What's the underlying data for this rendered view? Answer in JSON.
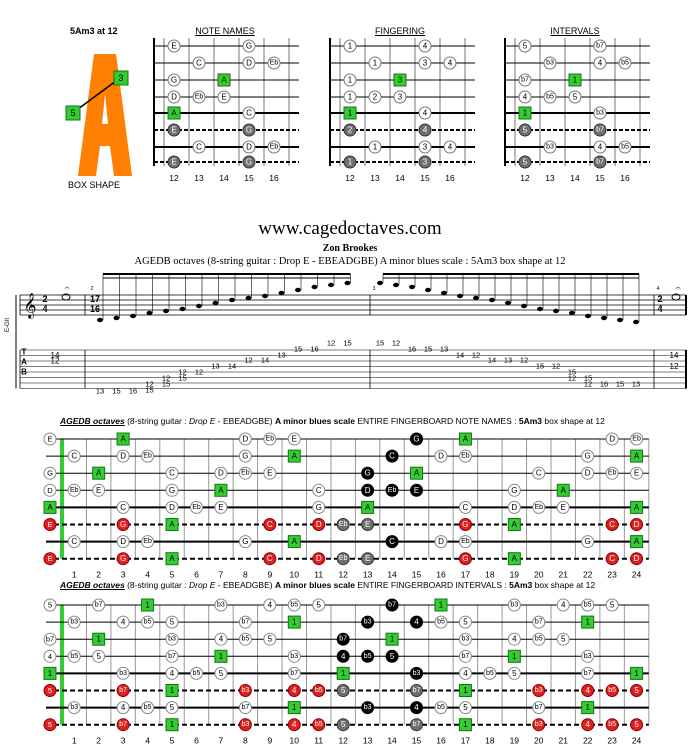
{
  "header": {
    "shape_title": "5Am3 at 12",
    "box_shape_label": "BOX SHAPE",
    "letter": "A",
    "letter_markers": [
      "3",
      "5"
    ],
    "panels": [
      {
        "title": "NOTE NAMES",
        "frets": [
          "12",
          "13",
          "14",
          "15",
          "16"
        ],
        "cells": [
          [
            "E",
            "",
            "",
            "G",
            ""
          ],
          [
            "",
            "C",
            "",
            "D",
            "Eb"
          ],
          [
            "G",
            "",
            "A",
            "",
            ""
          ],
          [
            "D",
            "Eb",
            "E",
            "",
            ""
          ],
          [
            "A",
            "",
            "",
            "C",
            ""
          ],
          [
            "E",
            "",
            "",
            "G",
            ""
          ],
          [
            "",
            "C",
            "",
            "D",
            "Eb"
          ],
          [
            "E",
            "",
            "",
            "G",
            ""
          ]
        ]
      },
      {
        "title": "FINGERING",
        "frets": [
          "12",
          "13",
          "14",
          "15",
          "16"
        ],
        "cells": [
          [
            "1",
            "",
            "",
            "4",
            ""
          ],
          [
            "",
            "1",
            "",
            "3",
            "4"
          ],
          [
            "1",
            "",
            "3",
            "",
            ""
          ],
          [
            "1",
            "2",
            "3",
            "",
            ""
          ],
          [
            "1",
            "",
            "",
            "4",
            ""
          ],
          [
            "2",
            "",
            "",
            "4",
            ""
          ],
          [
            "",
            "1",
            "",
            "3",
            "4"
          ],
          [
            "1",
            "",
            "",
            "3",
            ""
          ]
        ]
      },
      {
        "title": "INTERVALS",
        "frets": [
          "12",
          "13",
          "14",
          "15",
          "16"
        ],
        "cells": [
          [
            "5",
            "",
            "",
            "b7",
            ""
          ],
          [
            "",
            "b3",
            "",
            "4",
            "b5"
          ],
          [
            "b7",
            "",
            "1",
            "",
            ""
          ],
          [
            "4",
            "b5",
            "5",
            "",
            ""
          ],
          [
            "1",
            "",
            "",
            "b3",
            ""
          ],
          [
            "5",
            "",
            "",
            "b7",
            ""
          ],
          [
            "",
            "b3",
            "",
            "4",
            "b5"
          ],
          [
            "5",
            "",
            "",
            "b7",
            ""
          ]
        ]
      }
    ]
  },
  "site": "www.cagedoctaves.com",
  "author": "Zon Brookes",
  "subtitle": "AGEDB octaves (8-string guitar : Drop E - EBEADGBE) A minor blues scale : 5Am3 box shape at 12",
  "notation": {
    "time_sig": [
      "2",
      "4"
    ],
    "tuplet": "17",
    "tuplet_den": "16",
    "measure_numbers": [
      "1",
      "2",
      "3",
      "4"
    ],
    "clef_label": "E-GIt",
    "tab_letters": [
      "T",
      "A",
      "B"
    ],
    "fermata": "𝄐",
    "measure1_tab": [
      [
        "14",
        "12"
      ]
    ],
    "run_up": [
      [
        "13"
      ],
      [
        "15"
      ],
      [
        "16"
      ],
      [
        "12",
        "15"
      ],
      [
        "12",
        "15"
      ],
      [
        "12",
        "15"
      ],
      [
        "12"
      ],
      [
        "13"
      ],
      [
        "14"
      ],
      [
        "12"
      ],
      [
        "14"
      ],
      [
        "13"
      ],
      [
        "15"
      ],
      [
        "16"
      ],
      [
        "12"
      ],
      [
        "15"
      ]
    ],
    "run_down": [
      [
        "15"
      ],
      [
        "12"
      ],
      [
        "16"
      ],
      [
        "15"
      ],
      [
        "13"
      ],
      [
        "14"
      ],
      [
        "12"
      ],
      [
        "14"
      ],
      [
        "13"
      ],
      [
        "12"
      ],
      [
        "15"
      ],
      [
        "12"
      ],
      [
        "15",
        "12"
      ],
      [
        "15",
        "12"
      ],
      [
        "16"
      ],
      [
        "15"
      ],
      [
        "13"
      ]
    ],
    "end_tab": [
      "14",
      "12"
    ]
  },
  "board_notes": {
    "heading_prefix": "AGEDB octaves",
    "heading_mid": " (8-string guitar : ",
    "heading_tuning": "Drop E",
    "heading_after": " - EBEADGBE) ",
    "heading_scale": "A minor blues scale",
    "heading_type": " ENTIRE FINGERBOARD NOTE NAMES : ",
    "heading_shape": "5Am3",
    "heading_end": " box shape at 12",
    "open": [
      "E",
      "",
      "G",
      "D",
      "A",
      "E",
      "",
      "E"
    ],
    "rows": [
      [
        "",
        "",
        "",
        "A",
        "",
        "",
        "",
        "",
        "D",
        "Eb",
        "E",
        "",
        "",
        "",
        "",
        "G",
        "",
        "A",
        "",
        "",
        "",
        "",
        "",
        "D",
        "Eb",
        "E"
      ],
      [
        "",
        "C",
        "",
        "D",
        "Eb",
        "",
        "",
        "",
        "G",
        "",
        "A",
        "",
        "",
        "",
        "C",
        "",
        "D",
        "Eb",
        "",
        "",
        "",
        "",
        "G",
        "",
        "A",
        ""
      ],
      [
        "",
        "",
        "A",
        "",
        "",
        "C",
        "",
        "D",
        "Eb",
        "E",
        "",
        "",
        "",
        "G",
        "",
        "A",
        "",
        "",
        "",
        "",
        "C",
        "",
        "D",
        "Eb",
        "E",
        ""
      ],
      [
        "",
        "Eb",
        "E",
        "",
        "",
        "G",
        "",
        "A",
        "",
        "",
        "",
        "C",
        "",
        "D",
        "Eb",
        "E",
        "",
        "",
        "",
        "G",
        "",
        "A",
        "",
        "",
        ""
      ],
      [
        "",
        "",
        "",
        "C",
        "",
        "D",
        "Eb",
        "E",
        "",
        "",
        "",
        "G",
        "",
        "A",
        "",
        "",
        "",
        "C",
        "",
        "D",
        "Eb",
        "E",
        "",
        "",
        "A"
      ],
      [
        "",
        "",
        "",
        "G",
        "",
        "A",
        "",
        "",
        "",
        "C",
        "",
        "D",
        "Eb",
        "E",
        "",
        "",
        "",
        "G",
        "",
        "A",
        "",
        "",
        "",
        "C",
        "D",
        "Eb",
        "E"
      ],
      [
        "",
        "C",
        "",
        "D",
        "Eb",
        "",
        "",
        "",
        "G",
        "",
        "A",
        "",
        "",
        "",
        "C",
        "",
        "D",
        "Eb",
        "",
        "",
        "",
        "",
        "G",
        "",
        "A",
        ""
      ],
      [
        "",
        "",
        "",
        "G",
        "",
        "A",
        "",
        "",
        "",
        "C",
        "",
        "D",
        "Eb",
        "E",
        "",
        "",
        "",
        "G",
        "",
        "A",
        "",
        "",
        "",
        "C",
        "D",
        "Eb",
        "E"
      ]
    ]
  },
  "board_intervals": {
    "heading_prefix": "AGEDB octaves",
    "heading_mid": " (8-string guitar : ",
    "heading_tuning": "Drop E",
    "heading_after": " - EBEADGBE) ",
    "heading_scale": "A minor blues scale",
    "heading_type": " ENTIRE FINGERBOARD INTERVALS : ",
    "heading_shape": "5Am3",
    "heading_end": " box shape at 12",
    "open": [
      "5",
      "",
      "b7",
      "4",
      "1",
      "5",
      "",
      "5"
    ],
    "rows": [
      [
        "",
        "",
        "b7",
        "",
        "1",
        "",
        "",
        "b3",
        "",
        "4",
        "b5",
        "5",
        "",
        "",
        "b7",
        "",
        "1",
        "",
        "",
        "b3",
        "",
        "4",
        "b5",
        "5"
      ],
      [
        "",
        "b3",
        "",
        "4",
        "b5",
        "5",
        "",
        "",
        "b7",
        "",
        "1",
        "",
        "",
        "b3",
        "",
        "4",
        "b5",
        "5",
        "",
        "",
        "b7",
        "",
        "1",
        ""
      ],
      [
        "",
        "",
        "1",
        "",
        "",
        "b3",
        "",
        "4",
        "b5",
        "5",
        "",
        "",
        "b7",
        "",
        "1",
        "",
        "",
        "b3",
        "",
        "4",
        "b5",
        "5",
        "",
        ""
      ],
      [
        "",
        "b5",
        "5",
        "",
        "",
        "b7",
        "",
        "1",
        "",
        "",
        "b3",
        "",
        "4",
        "b5",
        "5",
        "",
        "",
        "b7",
        "",
        "1",
        "",
        "",
        "b3",
        ""
      ],
      [
        "",
        "",
        "",
        "b3",
        "",
        "4",
        "b5",
        "5",
        "",
        "",
        "b7",
        "",
        "1",
        "",
        "",
        "b3",
        "",
        "4",
        "b5",
        "5",
        "",
        "",
        "b7",
        "",
        "1"
      ],
      [
        "",
        "",
        "",
        "b7",
        "",
        "1",
        "",
        "",
        "b3",
        "",
        "4",
        "b5",
        "5",
        "",
        "",
        "b7",
        "",
        "1",
        "",
        "",
        "b3",
        "",
        "4",
        "b5",
        "5"
      ],
      [
        "",
        "b3",
        "",
        "4",
        "b5",
        "5",
        "",
        "",
        "b7",
        "",
        "1",
        "",
        "",
        "b3",
        "",
        "4",
        "b5",
        "5",
        "",
        "",
        "b7",
        "",
        "1",
        ""
      ],
      [
        "",
        "",
        "",
        "b7",
        "",
        "1",
        "",
        "",
        "b3",
        "",
        "4",
        "b5",
        "5",
        "",
        "",
        "b7",
        "",
        "1",
        "",
        "",
        "b3",
        "",
        "4",
        "b5",
        "5"
      ]
    ]
  },
  "fret_numbers": [
    "1",
    "2",
    "3",
    "4",
    "5",
    "6",
    "7",
    "8",
    "9",
    "10",
    "11",
    "12",
    "13",
    "14",
    "15",
    "16",
    "17",
    "18",
    "19",
    "20",
    "21",
    "22",
    "23",
    "24"
  ],
  "colors": {
    "orange": "#ff7f00",
    "green": "#33cc33",
    "red": "#e0201e",
    "gray": "#707070",
    "black": "#000000"
  }
}
